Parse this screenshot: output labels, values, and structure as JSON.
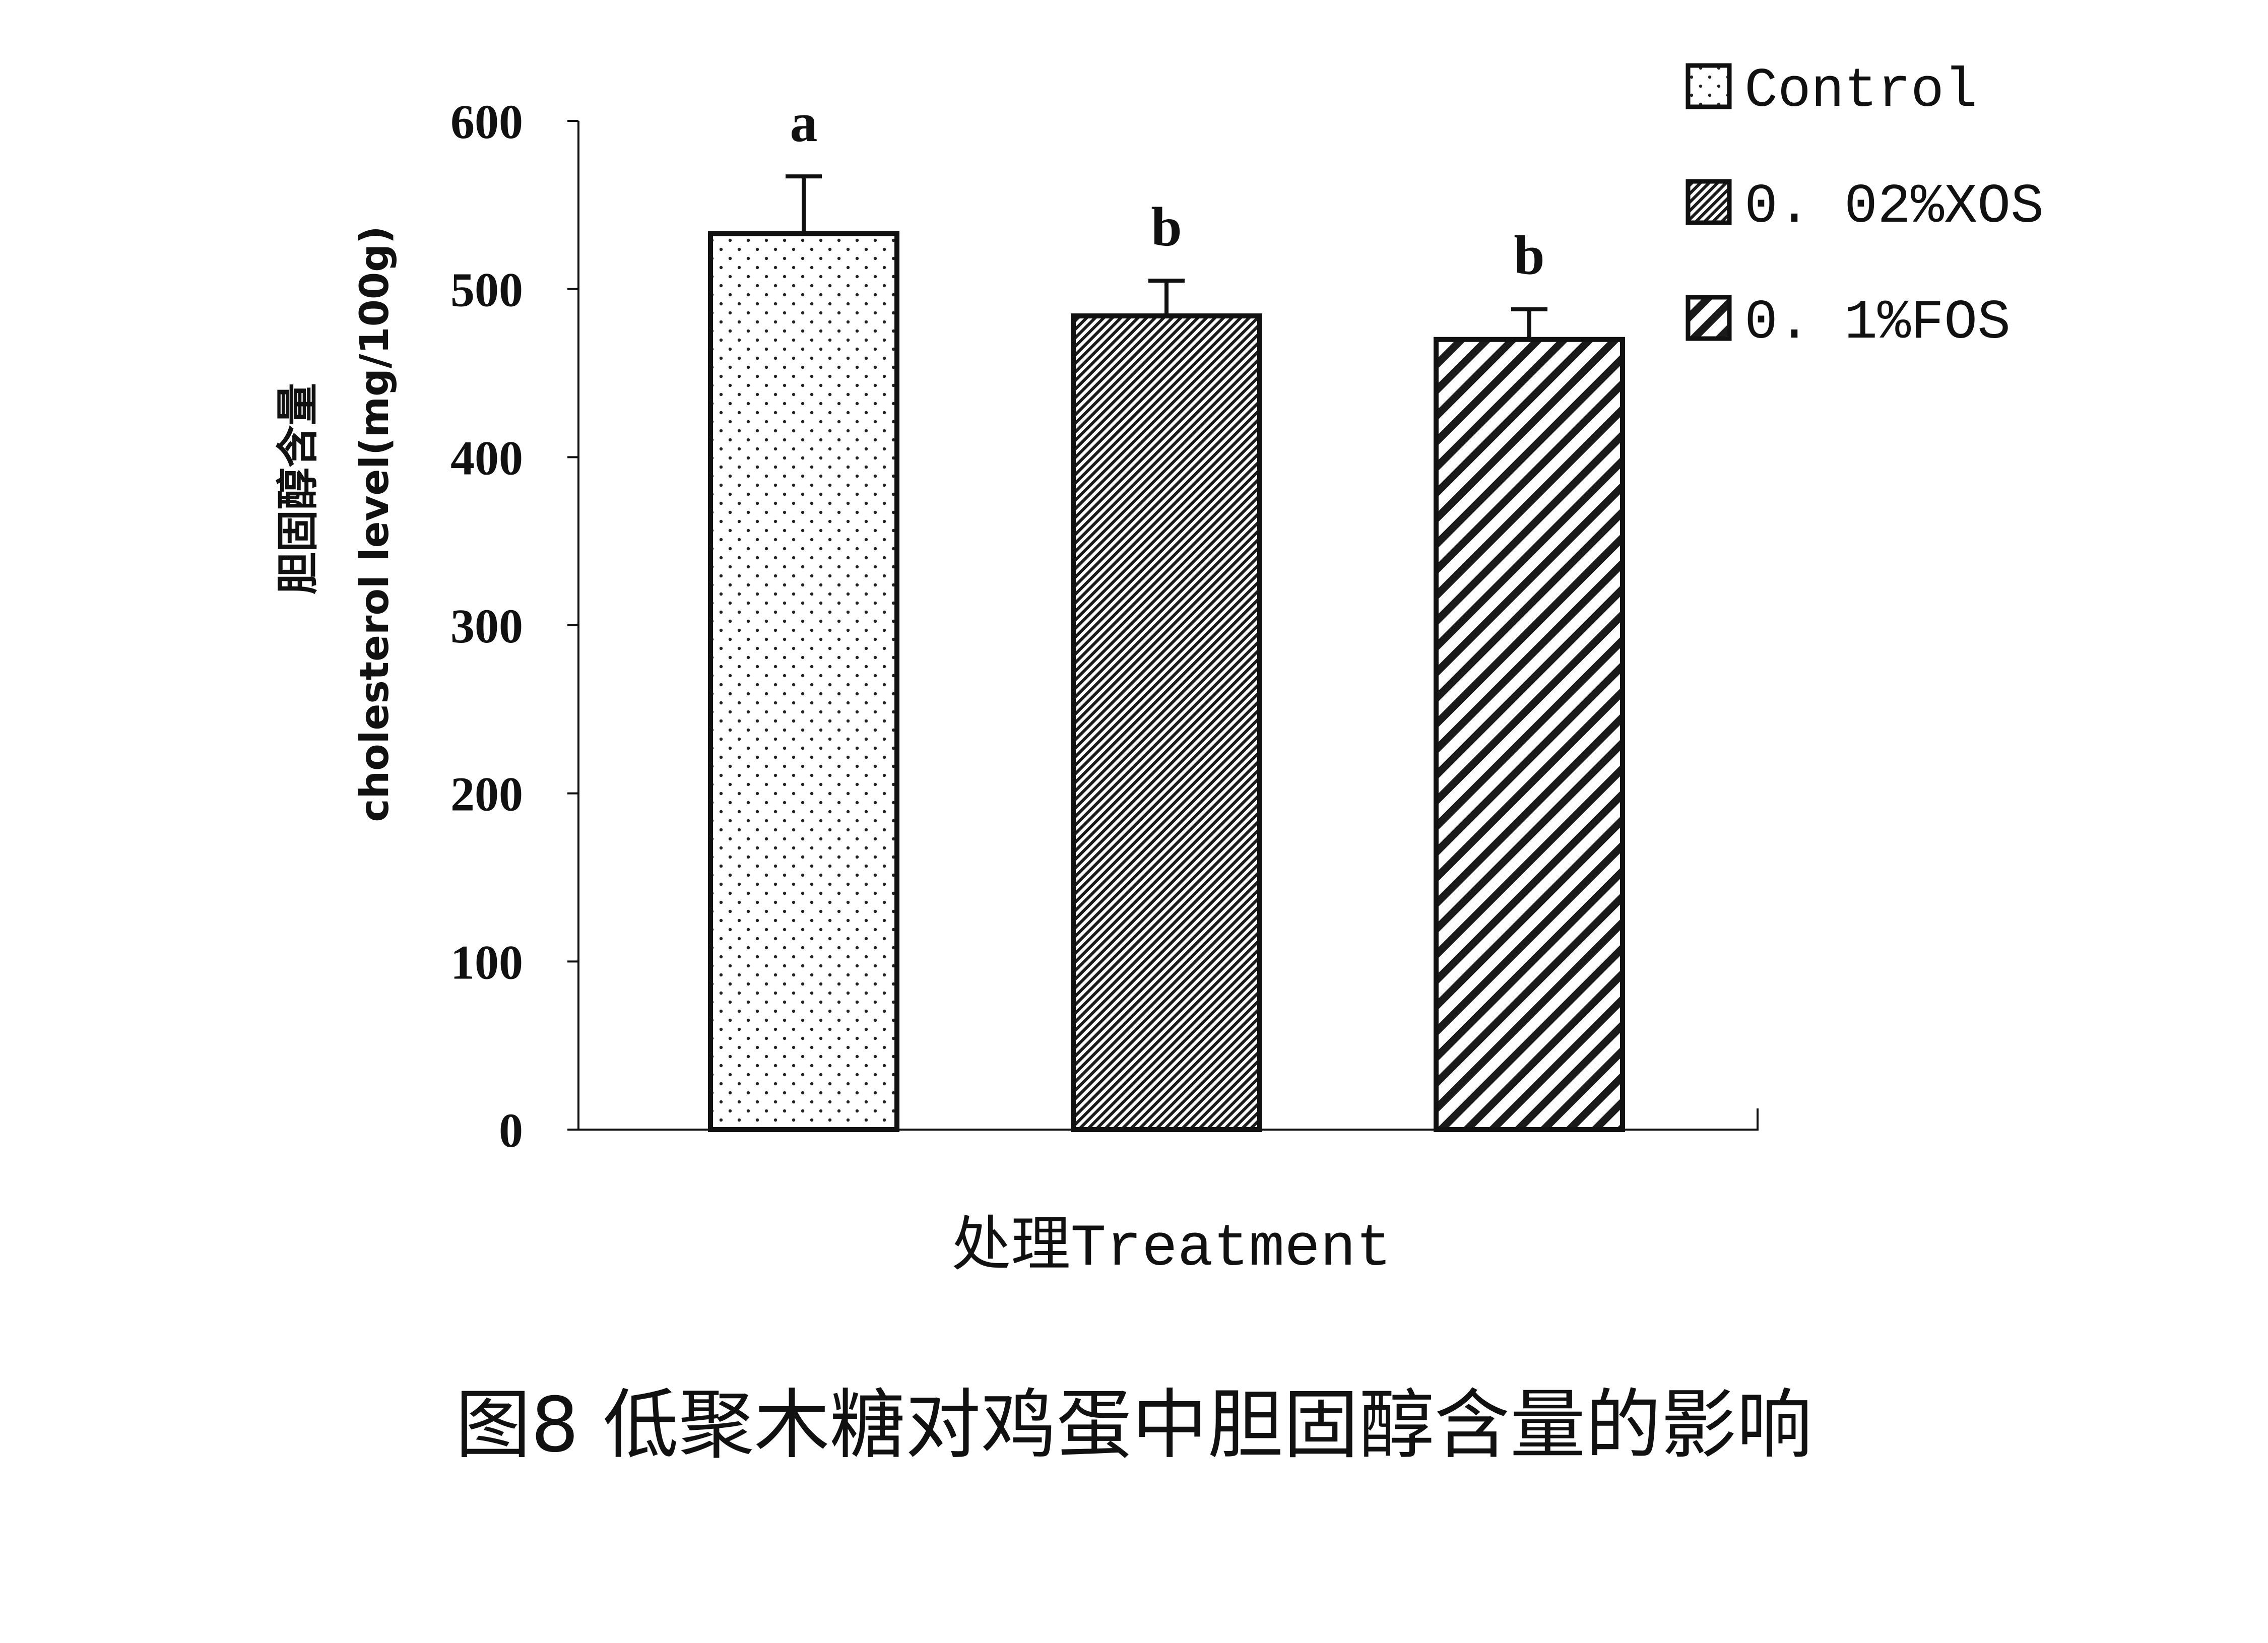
{
  "caption": "图8 低聚木糖对鸡蛋中胆固醇含量的影响",
  "chart_data": {
    "type": "bar",
    "categories": [
      "Control",
      "0.02%XOS",
      "0.1%FOS"
    ],
    "values": [
      533,
      484,
      470
    ],
    "errors": [
      34,
      21,
      18
    ],
    "significance_letters": [
      "a",
      "b",
      "b"
    ],
    "patterns": [
      "dots",
      "dense-hatch",
      "diagonal-stripes"
    ],
    "ylabel_cn": "胆固醇含量",
    "ylabel_en": "cholesterol level(mg/100g)",
    "xlabel": "处理Treatment",
    "ylim": [
      0,
      600
    ],
    "yticks": [
      0,
      100,
      200,
      300,
      400,
      500,
      600
    ],
    "legend": {
      "placement": "top-right",
      "entries": [
        "Control",
        "0. 02%XOS",
        "0. 1%FOS"
      ]
    },
    "grid": false,
    "bar_color": "#ffffff",
    "edge_color": "#111111"
  }
}
